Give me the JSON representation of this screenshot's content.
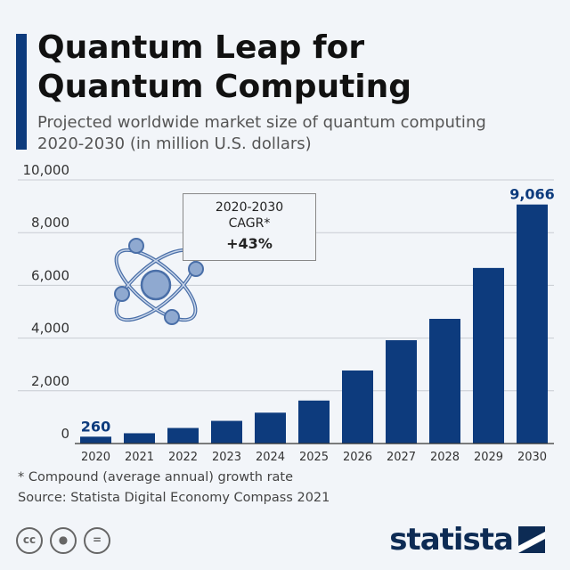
{
  "header": {
    "title": "Quantum Leap for Quantum Computing",
    "subtitle": "Projected worldwide market size of quantum computing 2020-2030 (in million U.S. dollars)"
  },
  "annotation": {
    "line1": "2020-2030",
    "line2": "CAGR*",
    "value": "+43%"
  },
  "footer": {
    "note": "* Compound (average annual) growth rate",
    "source": "Source: Statista Digital Economy Compass 2021",
    "logo": "statista",
    "license_icons": [
      "cc-icon",
      "by-icon",
      "nd-icon"
    ]
  },
  "colors": {
    "bar": "#0d3b7d",
    "accent": "#0d3b7d",
    "icon": "#8fa9d0"
  },
  "chart_data": {
    "type": "bar",
    "categories": [
      "2020",
      "2021",
      "2022",
      "2023",
      "2024",
      "2025",
      "2026",
      "2027",
      "2028",
      "2029",
      "2030"
    ],
    "values": [
      260,
      390,
      590,
      860,
      1170,
      1630,
      2770,
      3920,
      4730,
      6660,
      9066
    ],
    "data_labels": {
      "2020": "260",
      "2030": "9,066"
    },
    "yticks": [
      "0",
      "2,000",
      "4,000",
      "6,000",
      "8,000",
      "10,000"
    ],
    "ylim": [
      0,
      10000
    ],
    "grid": true,
    "xlabel": "",
    "ylabel": ""
  }
}
